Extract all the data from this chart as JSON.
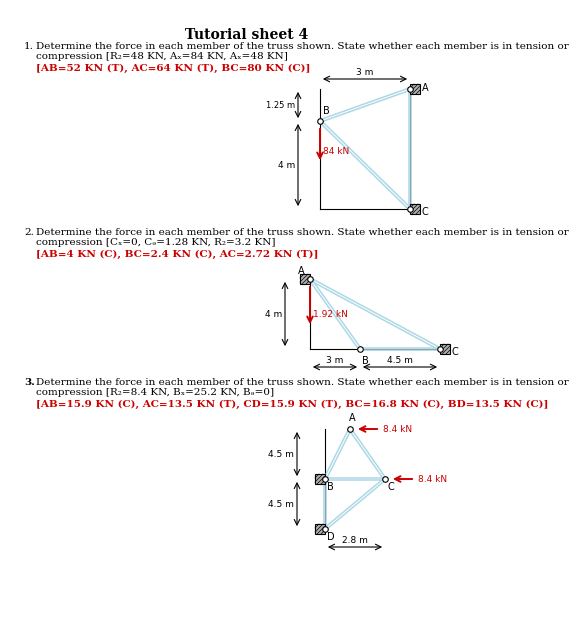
{
  "title": "Tutorial sheet 4",
  "bg_color": "#ffffff",
  "truss_color": "#add8e6",
  "arrow_color": "#cc0000",
  "answer_color": "#cc0000",
  "text_color": "#000000",
  "dim_color": "#000000",
  "q1_main": "Determine the force in each member of the truss shown. State whether each member is in tension or\ncompression [R₂=48 KN, Aₓ=84 KN, Aₓ=48 KN]",
  "q1_ans": "[AB=52 KN (T), AC=64 KN (T), BC=80 KN (C)]",
  "q2_main": "Determine the force in each member of the truss shown. State whether each member is in tension or\ncompression [Cₓ=0, Cₔ=1.28 KN, R₂=3.2 KN]",
  "q2_ans": "[AB=4 KN (C), BC=2.4 KN (C), AC=2.72 KN (T)]",
  "q3_main": "Determine the force in each member of the truss shown. State whether each member is in tension or\ncompression [R₂=8.4 KN, Bₓ=25.2 KN, Bₔ=0]",
  "q3_ans": "[AB=15.9 KN (C), AC=13.5 KN (T), CD=15.9 KN (T), BC=16.8 KN (C), BD=13.5 KN (C)]"
}
